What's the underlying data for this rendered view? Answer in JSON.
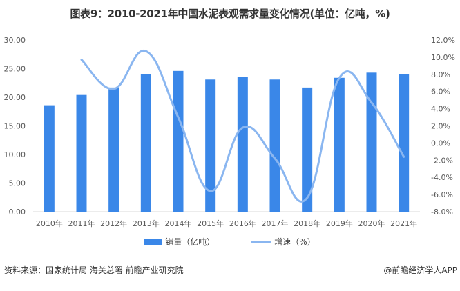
{
  "title": "图表9：2010-2021年中国水泥表观需求量变化情况(单位：亿吨，%)",
  "legend": {
    "bar_label": "销量（亿吨）",
    "line_label": "增速（%）"
  },
  "footer": {
    "source": "资料来源：国家统计局 海关总署 前瞻产业研究院",
    "credit": "@前瞻经济学人APP"
  },
  "colors": {
    "bar": "#3A87E8",
    "line": "#8AB6F0",
    "axis": "#D9D9D9",
    "tick_text": "#595959"
  },
  "chart_data": {
    "type": "bar+line",
    "title": "图表9：2010-2021年中国水泥表观需求量变化情况(单位：亿吨，%)",
    "categories": [
      "2010年",
      "2011年",
      "2012年",
      "2013年",
      "2014年",
      "2015年",
      "2016年",
      "2017年",
      "2018年",
      "2019年",
      "2020年",
      "2021年"
    ],
    "series": [
      {
        "name": "销量（亿吨）",
        "type": "bar",
        "axis": "left",
        "values": [
          18.6,
          20.4,
          21.7,
          24.0,
          24.6,
          23.1,
          23.5,
          23.1,
          21.7,
          23.4,
          24.3,
          24.0
        ]
      },
      {
        "name": "增速（%）",
        "type": "line",
        "axis": "right",
        "values": [
          null,
          9.7,
          6.3,
          10.7,
          3.0,
          -5.6,
          1.8,
          -1.8,
          -6.4,
          7.6,
          4.7,
          -1.6
        ]
      }
    ],
    "left_axis": {
      "min": 0,
      "max": 30,
      "step": 5,
      "ticks": [
        "0.00",
        "5.00",
        "10.00",
        "15.00",
        "20.00",
        "25.00",
        "30.00"
      ]
    },
    "right_axis": {
      "min": -8,
      "max": 12,
      "step": 2,
      "ticks": [
        "-8.0%",
        "-6.0%",
        "-4.0%",
        "-2.0%",
        "0.0%",
        "2.0%",
        "4.0%",
        "6.0%",
        "8.0%",
        "10.0%",
        "12.0%"
      ]
    },
    "xlabel": "",
    "ylabel": "",
    "grid": false,
    "legend_position": "bottom"
  }
}
